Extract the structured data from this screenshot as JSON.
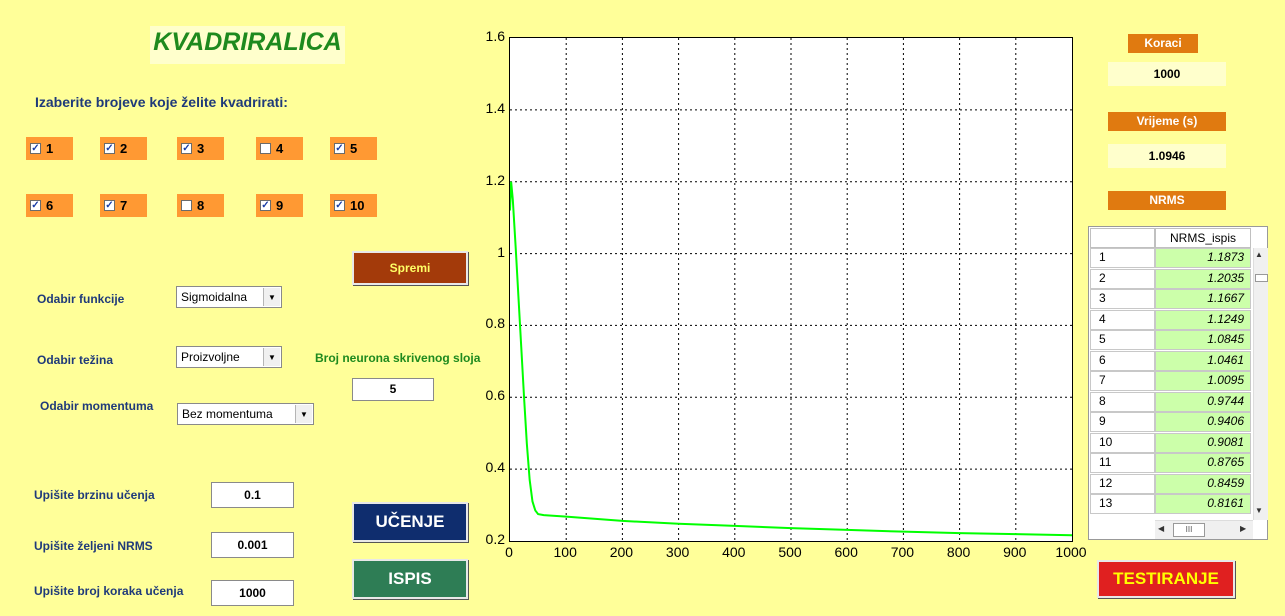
{
  "title": "KVADRIRALICA",
  "subtitle": "Izaberite brojeve koje želite kvadrirati:",
  "checkboxes": [
    {
      "label": "1",
      "checked": true
    },
    {
      "label": "2",
      "checked": true
    },
    {
      "label": "3",
      "checked": true
    },
    {
      "label": "4",
      "checked": false
    },
    {
      "label": "5",
      "checked": true
    },
    {
      "label": "6",
      "checked": true
    },
    {
      "label": "7",
      "checked": true
    },
    {
      "label": "8",
      "checked": false
    },
    {
      "label": "9",
      "checked": true
    },
    {
      "label": "10",
      "checked": true
    }
  ],
  "buttons": {
    "spremi": "Spremi",
    "ucenje": "UČENJE",
    "ispis": "ISPIS",
    "testiranje": "TESTIRANJE"
  },
  "settings": {
    "funkcija_label": "Odabir funkcije",
    "funkcija_value": "Sigmoidalna",
    "tezina_label": "Odabir težina",
    "tezina_value": "Proizvoljne",
    "momentum_label": "Odabir momentuma",
    "momentum_value": "Bez momentuma",
    "neurons_label": "Broj neurona skrivenog sloja",
    "neurons_value": "5",
    "brzina_label": "Upišite brzinu učenja",
    "brzina_value": "0.1",
    "nrms_label": "Upišite željeni NRMS",
    "nrms_value": "0.001",
    "koraci_label": "Upišite broj koraka učenja",
    "koraci_value": "1000"
  },
  "side": {
    "koraci_label": "Koraci",
    "koraci_value": "1000",
    "vrijeme_label": "Vrijeme (s)",
    "vrijeme_value": "1.0946",
    "nrms_label": "NRMS"
  },
  "table": {
    "header": "NRMS_ispis",
    "rows": [
      [
        "1",
        "1.1873"
      ],
      [
        "2",
        "1.2035"
      ],
      [
        "3",
        "1.1667"
      ],
      [
        "4",
        "1.1249"
      ],
      [
        "5",
        "1.0845"
      ],
      [
        "6",
        "1.0461"
      ],
      [
        "7",
        "1.0095"
      ],
      [
        "8",
        "0.9744"
      ],
      [
        "9",
        "0.9406"
      ],
      [
        "10",
        "0.9081"
      ],
      [
        "11",
        "0.8765"
      ],
      [
        "12",
        "0.8459"
      ],
      [
        "13",
        "0.8161"
      ]
    ],
    "scroll_glyph": "III"
  },
  "colors": {
    "background": "#ffff99",
    "checkbox_bg": "#ff9933",
    "line": "#00ff00",
    "ucenje_bg": "#0f2d6e",
    "ispis_bg": "#2e7d55",
    "spremi_bg": "#a33a0a",
    "testiranje_bg": "#e02020"
  },
  "chart_data": {
    "type": "line",
    "xlim": [
      0,
      1000
    ],
    "ylim": [
      0.2,
      1.6
    ],
    "xticks": [
      "0",
      "100",
      "200",
      "300",
      "400",
      "500",
      "600",
      "700",
      "800",
      "900",
      "1000"
    ],
    "yticks": [
      "0.2",
      "0.4",
      "0.6",
      "0.8",
      "1",
      "1.2",
      "1.4",
      "1.6"
    ],
    "grid": true,
    "series": [
      {
        "x": [
          0,
          2,
          5,
          10,
          15,
          20,
          25,
          30,
          35,
          40,
          45,
          50,
          60,
          80,
          100,
          150,
          200,
          300,
          400,
          500,
          600,
          700,
          800,
          900,
          1000
        ],
        "y": [
          1.12,
          1.2,
          1.15,
          1.02,
          0.88,
          0.74,
          0.6,
          0.47,
          0.37,
          0.31,
          0.285,
          0.275,
          0.272,
          0.27,
          0.268,
          0.262,
          0.256,
          0.248,
          0.242,
          0.236,
          0.231,
          0.226,
          0.222,
          0.219,
          0.216
        ]
      }
    ]
  }
}
